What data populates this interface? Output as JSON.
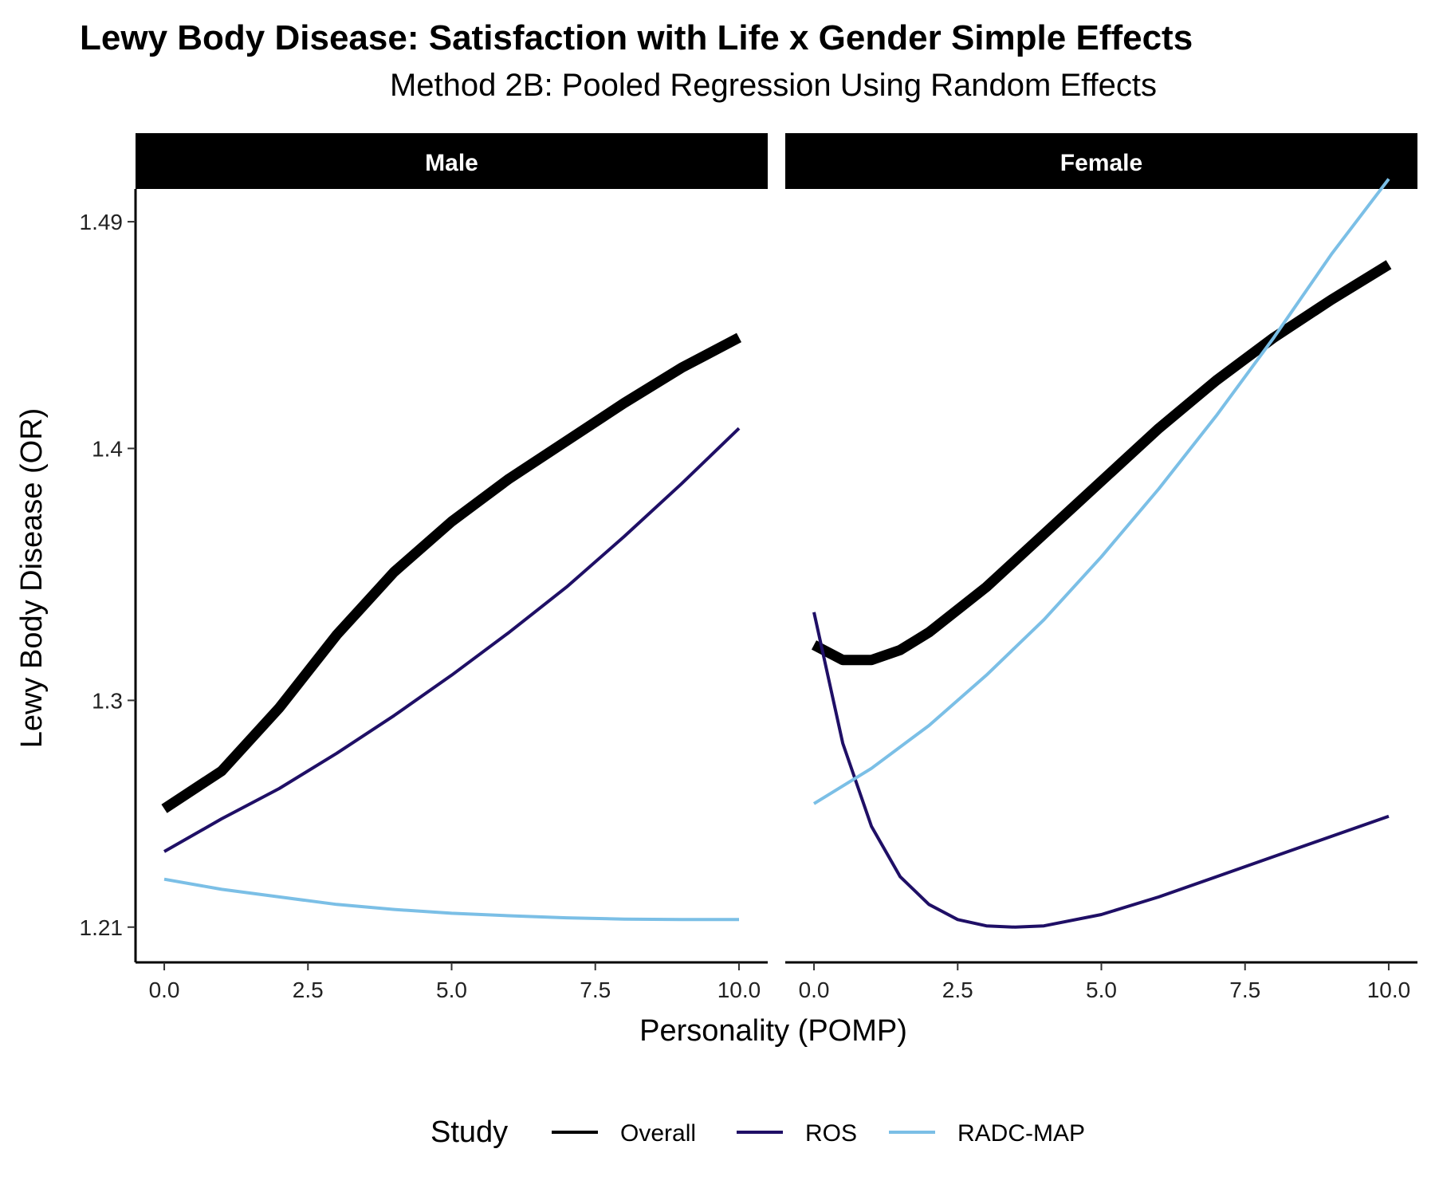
{
  "chart_data": {
    "type": "line",
    "title": "Lewy Body Disease: Satisfaction with Life x Gender Simple Effects",
    "subtitle": "Method 2B: Pooled Regression Using Random Effects",
    "xlabel": "Personality (POMP)",
    "ylabel": "Lewy Body Disease (OR)",
    "xlim": [
      -0.5,
      10.5
    ],
    "ylim": [
      1.196,
      1.503
    ],
    "x_ticks": [
      0.0,
      2.5,
      5.0,
      7.5,
      10.0
    ],
    "x_tick_labels": [
      "0.0",
      "2.5",
      "5.0",
      "7.5",
      "10.0"
    ],
    "y_ticks": [
      1.21,
      1.3,
      1.4,
      1.49
    ],
    "y_tick_labels": [
      "1.21",
      "1.3",
      "1.4",
      "1.49"
    ],
    "grid": false,
    "legend": {
      "title": "Study",
      "position": "bottom",
      "entries": [
        {
          "label": "Overall",
          "color": "#000000"
        },
        {
          "label": "ROS",
          "color": "#1f0f66"
        },
        {
          "label": "RADC-MAP",
          "color": "#7bbfe6"
        }
      ]
    },
    "panels": [
      {
        "label": "Male",
        "series": [
          {
            "name": "Overall",
            "color": "#000000",
            "x": [
              0,
              1,
              2,
              3,
              4,
              5,
              6,
              7,
              8,
              9,
              10
            ],
            "y": [
              1.257,
              1.272,
              1.297,
              1.326,
              1.351,
              1.371,
              1.388,
              1.403,
              1.418,
              1.432,
              1.444
            ]
          },
          {
            "name": "ROS",
            "color": "#1f0f66",
            "x": [
              0,
              1,
              2,
              3,
              4,
              5,
              6,
              7,
              8,
              9,
              10
            ],
            "y": [
              1.24,
              1.253,
              1.265,
              1.279,
              1.294,
              1.31,
              1.327,
              1.345,
              1.365,
              1.386,
              1.408
            ]
          },
          {
            "name": "RADC-MAP",
            "color": "#7bbfe6",
            "x": [
              0,
              1,
              2,
              3,
              4,
              5,
              6,
              7,
              8,
              9,
              10
            ],
            "y": [
              1.229,
              1.225,
              1.222,
              1.219,
              1.217,
              1.2155,
              1.2145,
              1.2137,
              1.2132,
              1.213,
              1.213
            ]
          }
        ]
      },
      {
        "label": "Female",
        "series": [
          {
            "name": "Overall",
            "color": "#000000",
            "x": [
              0,
              0.5,
              1,
              1.5,
              2,
              3,
              4,
              5,
              6,
              7,
              8,
              9,
              10
            ],
            "y": [
              1.322,
              1.316,
              1.316,
              1.32,
              1.327,
              1.345,
              1.366,
              1.387,
              1.408,
              1.427,
              1.444,
              1.459,
              1.473
            ]
          },
          {
            "name": "ROS",
            "color": "#1f0f66",
            "x": [
              0,
              0.5,
              1,
              1.5,
              2,
              2.5,
              3,
              3.5,
              4,
              5,
              6,
              7,
              8,
              9,
              10
            ],
            "y": [
              1.335,
              1.283,
              1.25,
              1.23,
              1.219,
              1.213,
              1.2105,
              1.21,
              1.2105,
              1.215,
              1.222,
              1.23,
              1.238,
              1.246,
              1.254
            ]
          },
          {
            "name": "RADC-MAP",
            "color": "#7bbfe6",
            "x": [
              0,
              1,
              2,
              3,
              4,
              5,
              6,
              7,
              8,
              9,
              9.5,
              10
            ],
            "y": [
              1.259,
              1.273,
              1.29,
              1.31,
              1.332,
              1.357,
              1.384,
              1.413,
              1.444,
              1.477,
              1.492,
              1.507
            ]
          }
        ]
      }
    ]
  }
}
